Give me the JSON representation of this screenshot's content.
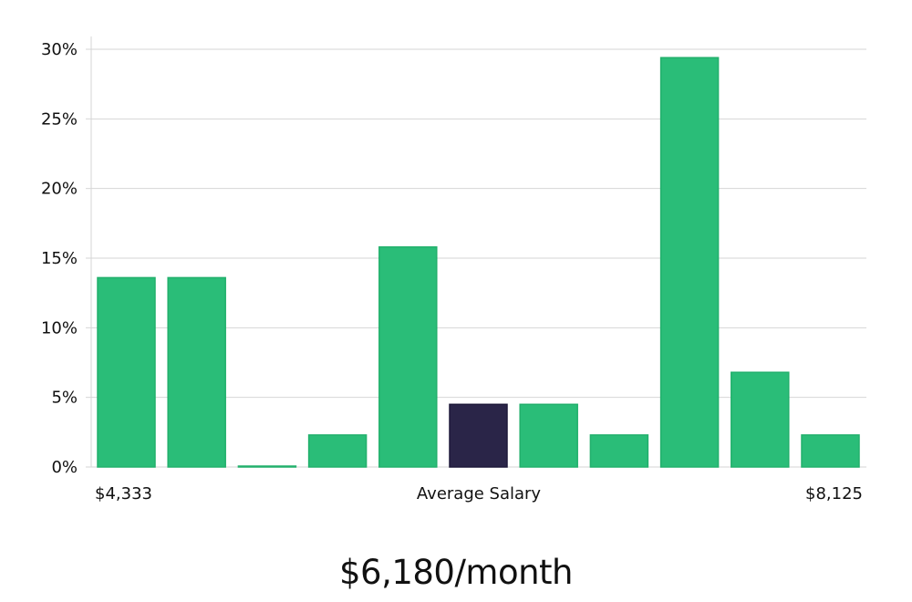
{
  "chart_data": {
    "type": "bar",
    "title": "",
    "xlabel": "Average Salary",
    "ylabel": "",
    "ylim": [
      0,
      30
    ],
    "y_ticks": [
      0,
      5,
      10,
      15,
      20,
      25,
      30
    ],
    "y_tick_suffix": "%",
    "x_min_label": "$4,333",
    "x_max_label": "$8,125",
    "values": [
      13.6,
      13.6,
      0.05,
      2.3,
      15.8,
      4.5,
      4.5,
      2.3,
      29.4,
      6.8,
      2.3
    ],
    "highlight_index": 5,
    "bar_color": "#2abd78",
    "bar_edge_color": "#22b06c",
    "highlight_color": "#2a2548",
    "grid": true
  },
  "caption": {
    "salary": "$6,180/month"
  }
}
